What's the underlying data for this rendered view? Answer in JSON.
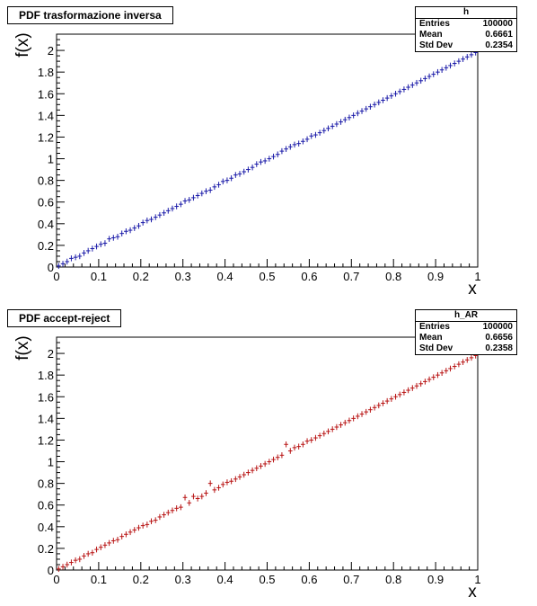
{
  "chart_data": [
    {
      "type": "scatter",
      "title": "PDF trasformazione inversa",
      "xlabel": "x",
      "ylabel": "f(x)",
      "xlim": [
        0,
        1
      ],
      "ylim": [
        0,
        2.15
      ],
      "grid": false,
      "x_ticks": [
        "0",
        "0.1",
        "0.2",
        "0.3",
        "0.4",
        "0.5",
        "0.6",
        "0.7",
        "0.8",
        "0.9",
        "1"
      ],
      "y_ticks": [
        "0",
        "0.2",
        "0.4",
        "0.6",
        "0.8",
        "1",
        "1.2",
        "1.4",
        "1.6",
        "1.8",
        "2"
      ],
      "color": "#1a1aa8",
      "stats": {
        "name": "h",
        "rows": [
          {
            "label": "Entries",
            "value": "100000"
          },
          {
            "label": "Mean",
            "value": "0.6661"
          },
          {
            "label": "Std Dev",
            "value": "0.2354"
          }
        ]
      },
      "x": [
        0.005,
        0.015,
        0.025,
        0.035,
        0.045,
        0.055,
        0.065,
        0.075,
        0.085,
        0.095,
        0.105,
        0.115,
        0.125,
        0.135,
        0.145,
        0.155,
        0.165,
        0.175,
        0.185,
        0.195,
        0.205,
        0.215,
        0.225,
        0.235,
        0.245,
        0.255,
        0.265,
        0.275,
        0.285,
        0.295,
        0.305,
        0.315,
        0.325,
        0.335,
        0.345,
        0.355,
        0.365,
        0.375,
        0.385,
        0.395,
        0.405,
        0.415,
        0.425,
        0.435,
        0.445,
        0.455,
        0.465,
        0.475,
        0.485,
        0.495,
        0.505,
        0.515,
        0.525,
        0.535,
        0.545,
        0.555,
        0.565,
        0.575,
        0.585,
        0.595,
        0.605,
        0.615,
        0.625,
        0.635,
        0.645,
        0.655,
        0.665,
        0.675,
        0.685,
        0.695,
        0.705,
        0.715,
        0.725,
        0.735,
        0.745,
        0.755,
        0.765,
        0.775,
        0.785,
        0.795,
        0.805,
        0.815,
        0.825,
        0.835,
        0.845,
        0.855,
        0.865,
        0.875,
        0.885,
        0.895,
        0.905,
        0.915,
        0.925,
        0.935,
        0.945,
        0.955,
        0.965,
        0.975,
        0.985,
        0.995
      ],
      "y": [
        0.01,
        0.03,
        0.05,
        0.08,
        0.09,
        0.1,
        0.13,
        0.15,
        0.17,
        0.19,
        0.21,
        0.22,
        0.26,
        0.27,
        0.28,
        0.31,
        0.33,
        0.34,
        0.36,
        0.38,
        0.41,
        0.43,
        0.44,
        0.46,
        0.48,
        0.5,
        0.52,
        0.54,
        0.56,
        0.58,
        0.61,
        0.62,
        0.64,
        0.66,
        0.68,
        0.7,
        0.71,
        0.74,
        0.76,
        0.79,
        0.8,
        0.82,
        0.85,
        0.86,
        0.88,
        0.9,
        0.92,
        0.95,
        0.97,
        0.98,
        1.0,
        1.02,
        1.04,
        1.07,
        1.09,
        1.11,
        1.13,
        1.14,
        1.16,
        1.18,
        1.21,
        1.22,
        1.24,
        1.26,
        1.28,
        1.3,
        1.32,
        1.34,
        1.36,
        1.38,
        1.4,
        1.42,
        1.44,
        1.46,
        1.48,
        1.5,
        1.52,
        1.54,
        1.56,
        1.58,
        1.6,
        1.62,
        1.64,
        1.66,
        1.68,
        1.7,
        1.72,
        1.74,
        1.76,
        1.78,
        1.8,
        1.82,
        1.84,
        1.86,
        1.88,
        1.9,
        1.92,
        1.94,
        1.96,
        1.98
      ],
      "y_err": 0.027
    },
    {
      "type": "scatter",
      "title": "PDF accept-reject",
      "xlabel": "x",
      "ylabel": "f(x)",
      "xlim": [
        0,
        1
      ],
      "ylim": [
        0,
        2.15
      ],
      "grid": false,
      "x_ticks": [
        "0",
        "0.1",
        "0.2",
        "0.3",
        "0.4",
        "0.5",
        "0.6",
        "0.7",
        "0.8",
        "0.9",
        "1"
      ],
      "y_ticks": [
        "0",
        "0.2",
        "0.4",
        "0.6",
        "0.8",
        "1",
        "1.2",
        "1.4",
        "1.6",
        "1.8",
        "2"
      ],
      "color": "#b81414",
      "stats": {
        "name": "h_AR",
        "rows": [
          {
            "label": "Entries",
            "value": "100000"
          },
          {
            "label": "Mean",
            "value": "0.6656"
          },
          {
            "label": "Std Dev",
            "value": "0.2358"
          }
        ]
      },
      "x": [
        0.005,
        0.015,
        0.025,
        0.035,
        0.045,
        0.055,
        0.065,
        0.075,
        0.085,
        0.095,
        0.105,
        0.115,
        0.125,
        0.135,
        0.145,
        0.155,
        0.165,
        0.175,
        0.185,
        0.195,
        0.205,
        0.215,
        0.225,
        0.235,
        0.245,
        0.255,
        0.265,
        0.275,
        0.285,
        0.295,
        0.305,
        0.315,
        0.325,
        0.335,
        0.345,
        0.355,
        0.365,
        0.375,
        0.385,
        0.395,
        0.405,
        0.415,
        0.425,
        0.435,
        0.445,
        0.455,
        0.465,
        0.475,
        0.485,
        0.495,
        0.505,
        0.515,
        0.525,
        0.535,
        0.545,
        0.555,
        0.565,
        0.575,
        0.585,
        0.595,
        0.605,
        0.615,
        0.625,
        0.635,
        0.645,
        0.655,
        0.665,
        0.675,
        0.685,
        0.695,
        0.705,
        0.715,
        0.725,
        0.735,
        0.745,
        0.755,
        0.765,
        0.775,
        0.785,
        0.795,
        0.805,
        0.815,
        0.825,
        0.835,
        0.845,
        0.855,
        0.865,
        0.875,
        0.885,
        0.895,
        0.905,
        0.915,
        0.925,
        0.935,
        0.945,
        0.955,
        0.965,
        0.975,
        0.985,
        0.995
      ],
      "y": [
        0.01,
        0.03,
        0.05,
        0.07,
        0.09,
        0.1,
        0.13,
        0.15,
        0.16,
        0.19,
        0.21,
        0.23,
        0.25,
        0.27,
        0.28,
        0.31,
        0.33,
        0.35,
        0.37,
        0.39,
        0.41,
        0.42,
        0.45,
        0.46,
        0.49,
        0.51,
        0.53,
        0.55,
        0.57,
        0.58,
        0.67,
        0.62,
        0.68,
        0.66,
        0.68,
        0.71,
        0.8,
        0.74,
        0.76,
        0.79,
        0.81,
        0.82,
        0.84,
        0.86,
        0.88,
        0.9,
        0.92,
        0.94,
        0.96,
        0.98,
        1.0,
        1.02,
        1.04,
        1.06,
        1.16,
        1.1,
        1.13,
        1.14,
        1.16,
        1.19,
        1.2,
        1.22,
        1.24,
        1.26,
        1.28,
        1.3,
        1.32,
        1.34,
        1.36,
        1.38,
        1.4,
        1.42,
        1.44,
        1.46,
        1.48,
        1.5,
        1.52,
        1.54,
        1.56,
        1.58,
        1.6,
        1.62,
        1.64,
        1.66,
        1.68,
        1.7,
        1.72,
        1.74,
        1.76,
        1.78,
        1.8,
        1.82,
        1.84,
        1.86,
        1.88,
        1.9,
        1.92,
        1.94,
        1.96,
        1.98
      ],
      "y_err": 0.027
    }
  ]
}
